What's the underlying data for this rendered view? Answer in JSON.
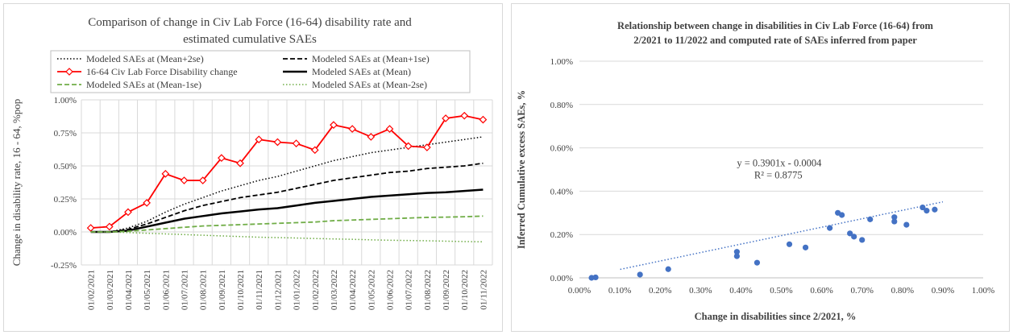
{
  "chart_data": [
    {
      "type": "line",
      "title": "Comparison of  change in Civ Lab Force (16-64) disability rate and estimated cumulative SAEs",
      "title_lines": [
        "Comparison of  change in Civ Lab Force (16-64) disability rate and",
        "estimated cumulative SAEs"
      ],
      "xlabel": "",
      "ylabel": "Change in disability rate, 16 - 64, %pop",
      "ylim": [
        -0.25,
        1.0
      ],
      "yticks": [
        -0.25,
        0.0,
        0.25,
        0.5,
        0.75,
        1.0
      ],
      "ytick_labels": [
        "-0.25%",
        "0.00%",
        "0.25%",
        "0.50%",
        "0.75%",
        "1.00%"
      ],
      "grid": true,
      "legend_position": "top",
      "categories": [
        "01/02/2021",
        "01/03/2021",
        "01/04/2021",
        "01/05/2021",
        "01/06/2021",
        "01/07/2021",
        "01/08/2021",
        "01/09/2021",
        "01/10/2021",
        "01/11/2021",
        "01/12/2021",
        "01/01/2022",
        "01/02/2022",
        "01/03/2022",
        "01/04/2022",
        "01/05/2022",
        "01/06/2022",
        "01/07/2022",
        "01/08/2022",
        "01/09/2022",
        "01/10/2022",
        "01/11/2022"
      ],
      "series": [
        {
          "name": "Modeled SAEs at (Mean+2se)",
          "color": "#000000",
          "style": "dotted",
          "values": [
            0,
            0,
            0.03,
            0.08,
            0.15,
            0.21,
            0.26,
            0.31,
            0.35,
            0.39,
            0.42,
            0.46,
            0.5,
            0.54,
            0.57,
            0.6,
            0.62,
            0.64,
            0.66,
            0.68,
            0.7,
            0.72
          ]
        },
        {
          "name": "Modeled SAEs at (Mean+1se)",
          "color": "#000000",
          "style": "dashed",
          "values": [
            0,
            0,
            0.02,
            0.06,
            0.11,
            0.16,
            0.2,
            0.23,
            0.26,
            0.28,
            0.3,
            0.33,
            0.36,
            0.39,
            0.41,
            0.43,
            0.45,
            0.46,
            0.48,
            0.49,
            0.5,
            0.52
          ]
        },
        {
          "name": "16-64 Civ Lab Force Disability change",
          "color": "#ff0000",
          "style": "solid-diamond",
          "values": [
            0.03,
            0.04,
            0.15,
            0.22,
            0.44,
            0.39,
            0.39,
            0.56,
            0.52,
            0.7,
            0.68,
            0.67,
            0.62,
            0.81,
            0.78,
            0.72,
            0.78,
            0.65,
            0.64,
            0.86,
            0.88,
            0.85
          ]
        },
        {
          "name": "Modeled SAEs at (Mean)",
          "color": "#000000",
          "style": "solid-thick",
          "values": [
            0,
            0,
            0.01,
            0.04,
            0.07,
            0.1,
            0.12,
            0.14,
            0.155,
            0.17,
            0.18,
            0.2,
            0.22,
            0.235,
            0.25,
            0.265,
            0.275,
            0.285,
            0.295,
            0.3,
            0.31,
            0.32
          ]
        },
        {
          "name": "Modeled SAEs at (Mean-1se)",
          "color": "#70ad47",
          "style": "dashed",
          "values": [
            0,
            0,
            0.005,
            0.015,
            0.025,
            0.035,
            0.045,
            0.05,
            0.055,
            0.06,
            0.065,
            0.07,
            0.075,
            0.085,
            0.09,
            0.095,
            0.1,
            0.105,
            0.11,
            0.112,
            0.115,
            0.12
          ]
        },
        {
          "name": "Modeled SAEs at (Mean-2se)",
          "color": "#70ad47",
          "style": "dotted",
          "values": [
            0,
            0,
            -0.005,
            -0.01,
            -0.015,
            -0.02,
            -0.025,
            -0.03,
            -0.035,
            -0.04,
            -0.043,
            -0.046,
            -0.05,
            -0.053,
            -0.056,
            -0.06,
            -0.063,
            -0.065,
            -0.067,
            -0.07,
            -0.073,
            -0.075
          ]
        }
      ]
    },
    {
      "type": "scatter",
      "title": "Relationship between change in disabilities in Civ Lab Force (16-64) from 2/2021 to 11/2022 and computed rate of SAEs inferred from paper",
      "title_lines": [
        "Relationship between change in disabilities in Civ Lab Force (16-64) from",
        "2/2021 to 11/2022 and computed rate of SAEs inferred from paper"
      ],
      "xlabel": "Change in disabilities since 2/2021, %",
      "ylabel": "Inferred Cumulative excess SAEs, %",
      "xlim": [
        0,
        1.0
      ],
      "ylim": [
        0,
        1.0
      ],
      "xticks": [
        0,
        0.1,
        0.2,
        0.3,
        0.4,
        0.5,
        0.6,
        0.7,
        0.8,
        0.9,
        1.0
      ],
      "xtick_labels": [
        "0.00%",
        "0.10%",
        "0.20%",
        "0.30%",
        "0.40%",
        "0.50%",
        "0.60%",
        "0.70%",
        "0.80%",
        "0.90%",
        "1.00%"
      ],
      "yticks": [
        0,
        0.2,
        0.4,
        0.6,
        0.8,
        1.0
      ],
      "ytick_labels": [
        "0.00%",
        "0.20%",
        "0.40%",
        "0.60%",
        "0.80%",
        "1.00%"
      ],
      "grid": true,
      "point_color": "#4472c4",
      "points": [
        {
          "x": 0.03,
          "y": 0.0
        },
        {
          "x": 0.04,
          "y": 0.002
        },
        {
          "x": 0.15,
          "y": 0.015
        },
        {
          "x": 0.22,
          "y": 0.04
        },
        {
          "x": 0.39,
          "y": 0.1
        },
        {
          "x": 0.39,
          "y": 0.12
        },
        {
          "x": 0.44,
          "y": 0.07
        },
        {
          "x": 0.52,
          "y": 0.155
        },
        {
          "x": 0.56,
          "y": 0.14
        },
        {
          "x": 0.62,
          "y": 0.23
        },
        {
          "x": 0.64,
          "y": 0.3
        },
        {
          "x": 0.65,
          "y": 0.29
        },
        {
          "x": 0.67,
          "y": 0.205
        },
        {
          "x": 0.68,
          "y": 0.19
        },
        {
          "x": 0.7,
          "y": 0.175
        },
        {
          "x": 0.72,
          "y": 0.27
        },
        {
          "x": 0.78,
          "y": 0.26
        },
        {
          "x": 0.78,
          "y": 0.28
        },
        {
          "x": 0.81,
          "y": 0.245
        },
        {
          "x": 0.85,
          "y": 0.325
        },
        {
          "x": 0.86,
          "y": 0.31
        },
        {
          "x": 0.88,
          "y": 0.315
        }
      ],
      "trendline": {
        "slope": 0.3901,
        "intercept": -0.0004,
        "equation": "y = 0.3901x - 0.0004",
        "r2": "R² = 0.8775",
        "style": "dotted"
      }
    }
  ]
}
